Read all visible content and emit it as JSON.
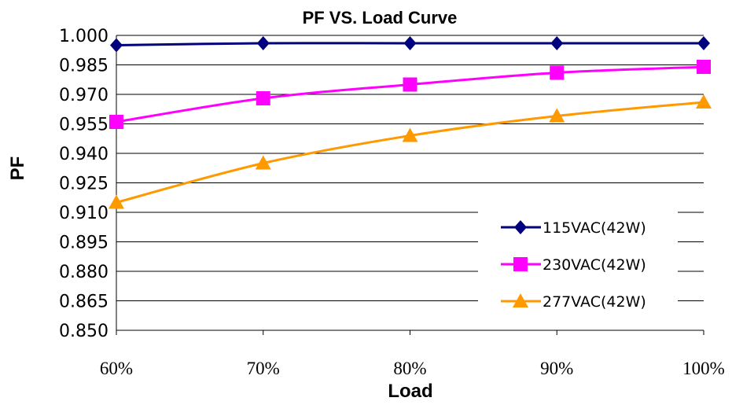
{
  "chart_data": {
    "type": "line",
    "title": "PF VS. Load Curve",
    "xlabel": "Load",
    "ylabel": "PF",
    "categories": [
      "60%",
      "70%",
      "80%",
      "90%",
      "100%"
    ],
    "ylim": [
      0.85,
      1.0
    ],
    "yticks": [
      "0.850",
      "0.865",
      "0.880",
      "0.895",
      "0.910",
      "0.925",
      "0.940",
      "0.955",
      "0.970",
      "0.985",
      "1.000"
    ],
    "grid": true,
    "legend_position": "bottom-right",
    "series": [
      {
        "name": "115VAC(42W)",
        "values": [
          0.995,
          0.996,
          0.996,
          0.996,
          0.996
        ],
        "color": "#00007f",
        "marker": "diamond"
      },
      {
        "name": "230VAC(42W)",
        "values": [
          0.956,
          0.968,
          0.975,
          0.981,
          0.984
        ],
        "color": "#ff00ff",
        "marker": "square"
      },
      {
        "name": "277VAC(42W)",
        "values": [
          0.915,
          0.935,
          0.949,
          0.959,
          0.966
        ],
        "color": "#ff9900",
        "marker": "triangle"
      }
    ]
  }
}
